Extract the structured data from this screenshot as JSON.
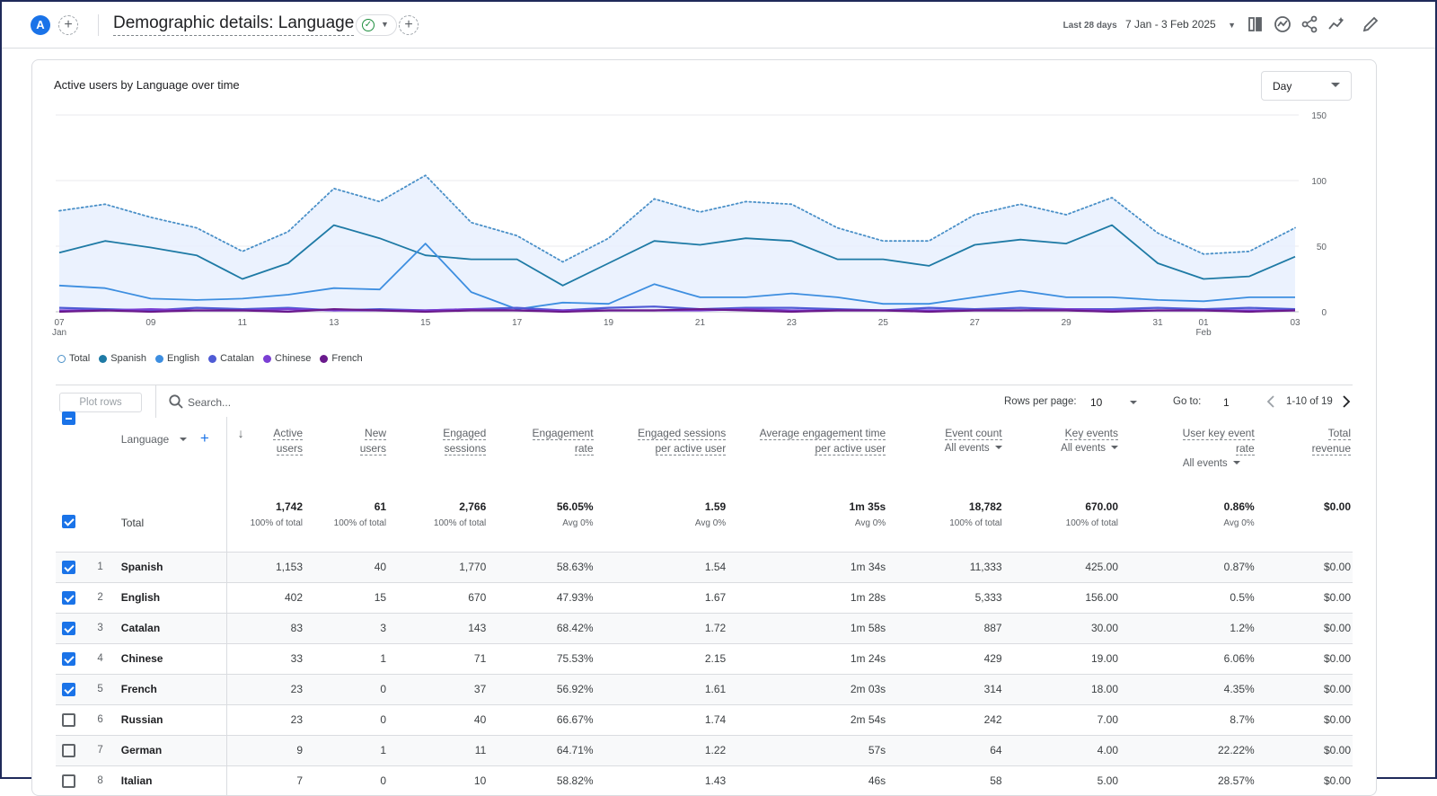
{
  "header": {
    "avatar_letter": "A",
    "title": "Demographic details: Language",
    "date_label": "Last 28 days",
    "date_range": "7 Jan - 3 Feb 2025",
    "icons": [
      "compare-icon",
      "insights-icon",
      "share-icon",
      "trend-icon",
      "edit-icon"
    ]
  },
  "chart": {
    "title": "Active users by Language over time",
    "granularity": "Day"
  },
  "chart_data": {
    "type": "line",
    "title": "Active users by Language over time",
    "x_ticks": [
      {
        "label": "07",
        "sub": "Jan",
        "day": 0
      },
      {
        "label": "09",
        "day": 2
      },
      {
        "label": "11",
        "day": 4
      },
      {
        "label": "13",
        "day": 6
      },
      {
        "label": "15",
        "day": 8
      },
      {
        "label": "17",
        "day": 10
      },
      {
        "label": "19",
        "day": 12
      },
      {
        "label": "21",
        "day": 14
      },
      {
        "label": "23",
        "day": 16
      },
      {
        "label": "25",
        "day": 18
      },
      {
        "label": "27",
        "day": 20
      },
      {
        "label": "29",
        "day": 22
      },
      {
        "label": "31",
        "day": 24
      },
      {
        "label": "01",
        "sub": "Feb",
        "day": 25
      },
      {
        "label": "03",
        "day": 27
      }
    ],
    "y_ticks": [
      0,
      50,
      100,
      150
    ],
    "ylim": [
      0,
      150
    ],
    "series": [
      {
        "name": "Total",
        "color": "#4a90c8",
        "style": "dotted-area",
        "values": [
          77,
          82,
          72,
          64,
          46,
          61,
          94,
          84,
          104,
          68,
          58,
          38,
          56,
          86,
          76,
          84,
          82,
          64,
          54,
          54,
          74,
          82,
          74,
          87,
          60,
          44,
          46,
          64
        ]
      },
      {
        "name": "Spanish",
        "color": "#1e7aa5",
        "style": "line",
        "values": [
          45,
          54,
          49,
          43,
          25,
          37,
          66,
          56,
          43,
          40,
          40,
          20,
          37,
          54,
          51,
          56,
          54,
          40,
          40,
          35,
          51,
          55,
          52,
          66,
          37,
          25,
          27,
          42
        ]
      },
      {
        "name": "English",
        "color": "#3d8ee0",
        "style": "line",
        "values": [
          20,
          18,
          10,
          9,
          10,
          13,
          18,
          17,
          52,
          15,
          2,
          7,
          6,
          21,
          11,
          11,
          14,
          11,
          6,
          6,
          11,
          16,
          11,
          11,
          9,
          8,
          11,
          11
        ]
      },
      {
        "name": "Catalan",
        "color": "#4f5bd5",
        "style": "line",
        "values": [
          3,
          2,
          1,
          3,
          2,
          3,
          1,
          2,
          1,
          2,
          3,
          1,
          3,
          4,
          2,
          3,
          3,
          2,
          1,
          3,
          2,
          3,
          2,
          2,
          3,
          2,
          3,
          2
        ]
      },
      {
        "name": "Chinese",
        "color": "#7b3fd4",
        "style": "line",
        "values": [
          1,
          1,
          2,
          1,
          1,
          2,
          1,
          1,
          1,
          2,
          1,
          1,
          1,
          1,
          1,
          2,
          1,
          1,
          1,
          1,
          1,
          1,
          2,
          1,
          1,
          1,
          1,
          1
        ]
      },
      {
        "name": "French",
        "color": "#6a1a8c",
        "style": "line",
        "values": [
          0,
          1,
          0,
          1,
          1,
          0,
          2,
          1,
          0,
          1,
          1,
          0,
          1,
          1,
          2,
          1,
          0,
          1,
          1,
          0,
          1,
          1,
          1,
          0,
          1,
          1,
          0,
          1
        ]
      }
    ]
  },
  "legend": [
    {
      "name": "Total",
      "color": "#ffffff",
      "border": "#4a90c8"
    },
    {
      "name": "Spanish",
      "color": "#1e7aa5"
    },
    {
      "name": "English",
      "color": "#3d8ee0"
    },
    {
      "name": "Catalan",
      "color": "#4f5bd5"
    },
    {
      "name": "Chinese",
      "color": "#7b3fd4"
    },
    {
      "name": "French",
      "color": "#6a1a8c"
    }
  ],
  "toolbar": {
    "plot_rows": "Plot rows",
    "search_placeholder": "Search...",
    "rows_per_page_label": "Rows per page:",
    "rows_per_page": "10",
    "goto_label": "Go to:",
    "goto_value": "1",
    "page_range": "1-10 of 19"
  },
  "table": {
    "dimension_header": "Language",
    "columns": [
      {
        "l1": "Active",
        "l2": "users"
      },
      {
        "l1": "New",
        "l2": "users"
      },
      {
        "l1": "Engaged",
        "l2": "sessions"
      },
      {
        "l1": "Engagement",
        "l2": "rate"
      },
      {
        "l1": "Engaged sessions",
        "l2": "per active user"
      },
      {
        "l1": "Average engagement time",
        "l2": "per active user"
      },
      {
        "l1": "Event count",
        "sub": "All events"
      },
      {
        "l1": "Key events",
        "sub": "All events"
      },
      {
        "l1": "User key event",
        "l2": "rate",
        "sub": "All events"
      },
      {
        "l1": "Total",
        "l2": "revenue"
      }
    ],
    "total": {
      "label": "Total",
      "values": [
        {
          "v": "1,742",
          "s": "100% of total"
        },
        {
          "v": "61",
          "s": "100% of total"
        },
        {
          "v": "2,766",
          "s": "100% of total"
        },
        {
          "v": "56.05%",
          "s": "Avg 0%"
        },
        {
          "v": "1.59",
          "s": "Avg 0%"
        },
        {
          "v": "1m 35s",
          "s": "Avg 0%"
        },
        {
          "v": "18,782",
          "s": "100% of total"
        },
        {
          "v": "670.00",
          "s": "100% of total"
        },
        {
          "v": "0.86%",
          "s": "Avg 0%"
        },
        {
          "v": "$0.00",
          "s": ""
        }
      ]
    },
    "rows": [
      {
        "rank": "1",
        "name": "Spanish",
        "checked": true,
        "values": [
          "1,153",
          "40",
          "1,770",
          "58.63%",
          "1.54",
          "1m 34s",
          "11,333",
          "425.00",
          "0.87%",
          "$0.00"
        ]
      },
      {
        "rank": "2",
        "name": "English",
        "checked": true,
        "values": [
          "402",
          "15",
          "670",
          "47.93%",
          "1.67",
          "1m 28s",
          "5,333",
          "156.00",
          "0.5%",
          "$0.00"
        ]
      },
      {
        "rank": "3",
        "name": "Catalan",
        "checked": true,
        "values": [
          "83",
          "3",
          "143",
          "68.42%",
          "1.72",
          "1m 58s",
          "887",
          "30.00",
          "1.2%",
          "$0.00"
        ]
      },
      {
        "rank": "4",
        "name": "Chinese",
        "checked": true,
        "values": [
          "33",
          "1",
          "71",
          "75.53%",
          "2.15",
          "1m 24s",
          "429",
          "19.00",
          "6.06%",
          "$0.00"
        ]
      },
      {
        "rank": "5",
        "name": "French",
        "checked": true,
        "values": [
          "23",
          "0",
          "37",
          "56.92%",
          "1.61",
          "2m 03s",
          "314",
          "18.00",
          "4.35%",
          "$0.00"
        ]
      },
      {
        "rank": "6",
        "name": "Russian",
        "checked": false,
        "values": [
          "23",
          "0",
          "40",
          "66.67%",
          "1.74",
          "2m 54s",
          "242",
          "7.00",
          "8.7%",
          "$0.00"
        ]
      },
      {
        "rank": "7",
        "name": "German",
        "checked": false,
        "values": [
          "9",
          "1",
          "11",
          "64.71%",
          "1.22",
          "57s",
          "64",
          "4.00",
          "22.22%",
          "$0.00"
        ]
      },
      {
        "rank": "8",
        "name": "Italian",
        "checked": false,
        "values": [
          "7",
          "0",
          "10",
          "58.82%",
          "1.43",
          "46s",
          "58",
          "5.00",
          "28.57%",
          "$0.00"
        ]
      }
    ]
  }
}
